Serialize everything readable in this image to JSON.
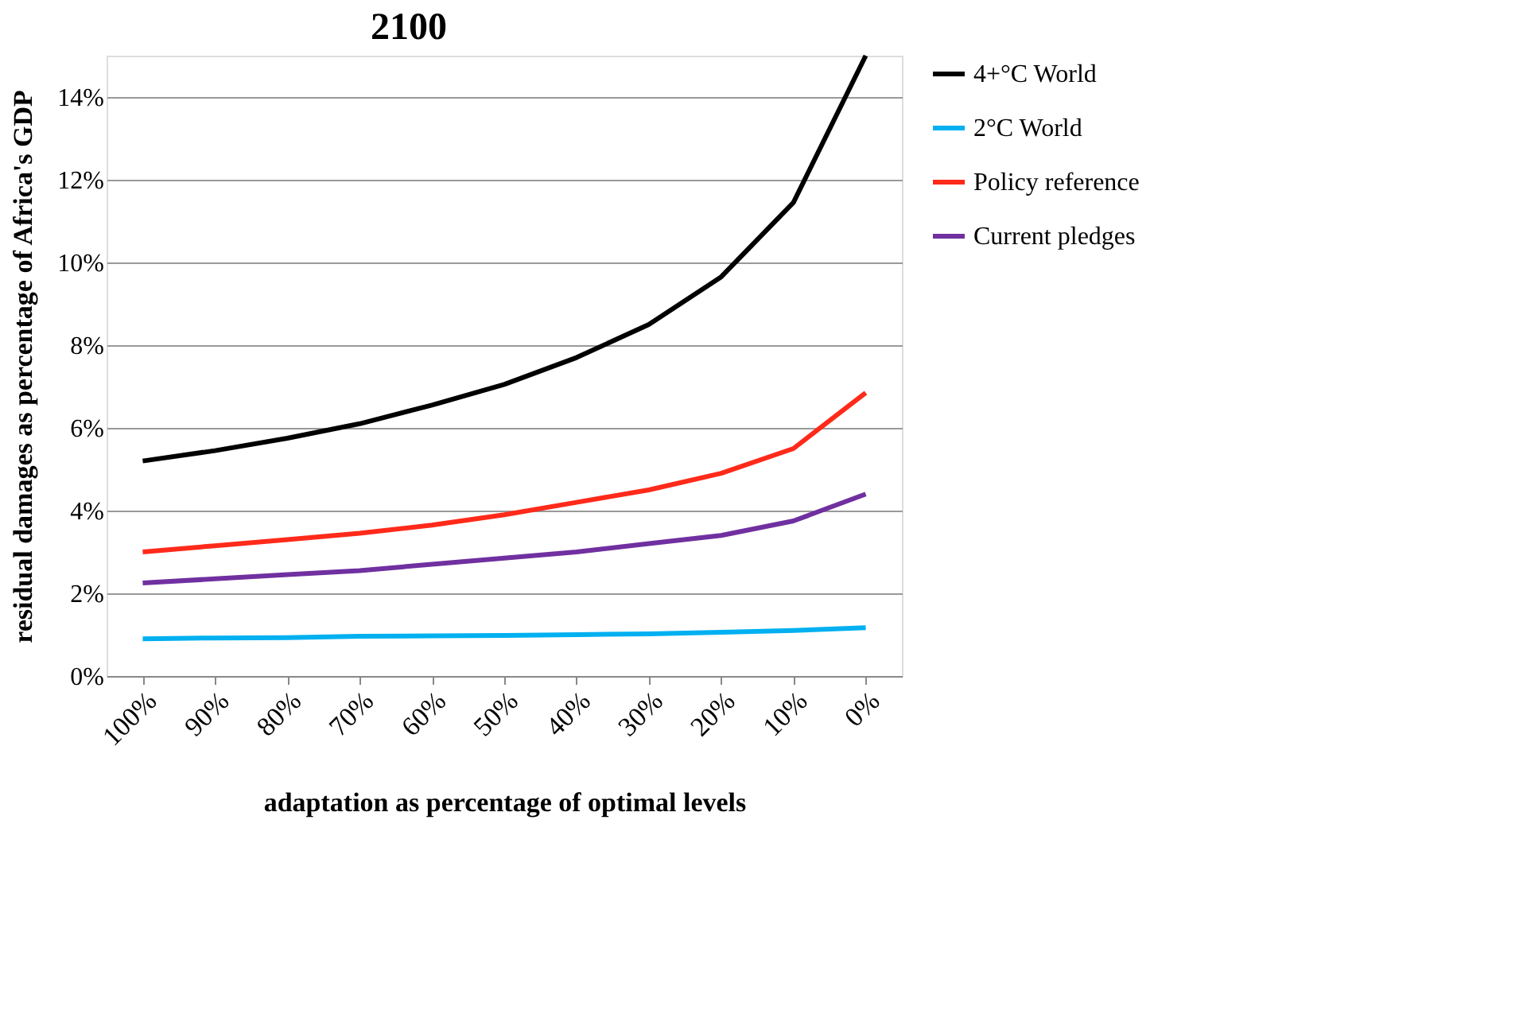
{
  "chart_data": {
    "type": "line",
    "title": "2100",
    "xlabel": "adaptation as percentage of optimal levels",
    "ylabel": "residual damages as percentage of Africa's GDP",
    "categories": [
      "100%",
      "90%",
      "80%",
      "70%",
      "60%",
      "50%",
      "40%",
      "30%",
      "20%",
      "10%",
      "0%"
    ],
    "series": [
      {
        "name": "4+°C World",
        "color": "#000000",
        "values": [
          5.2,
          5.45,
          5.75,
          6.1,
          6.55,
          7.05,
          7.7,
          8.5,
          9.65,
          11.45,
          15
        ]
      },
      {
        "name": "2°C World",
        "color": "#00b0f0",
        "values": [
          0.9,
          0.92,
          0.93,
          0.96,
          0.97,
          0.98,
          1.0,
          1.02,
          1.06,
          1.1,
          1.17
        ]
      },
      {
        "name": "Policy reference",
        "color": "#ff2a1a",
        "values": [
          3.0,
          3.15,
          3.3,
          3.45,
          3.65,
          3.9,
          4.2,
          4.5,
          4.9,
          5.5,
          6.85
        ]
      },
      {
        "name": "Current pledges",
        "color": "#7030a0",
        "values": [
          2.25,
          2.35,
          2.45,
          2.55,
          2.7,
          2.85,
          3.0,
          3.2,
          3.4,
          3.75,
          4.4
        ]
      }
    ],
    "ylim": [
      0,
      15
    ],
    "yticks": [
      {
        "value": 0,
        "label": "0%"
      },
      {
        "value": 2,
        "label": "2%"
      },
      {
        "value": 4,
        "label": "4%"
      },
      {
        "value": 6,
        "label": "6%"
      },
      {
        "value": 8,
        "label": "8%"
      },
      {
        "value": 10,
        "label": "10%"
      },
      {
        "value": 12,
        "label": "12%"
      },
      {
        "value": 14,
        "label": "14%"
      }
    ],
    "grid": "y",
    "legend": "right",
    "marker": "none",
    "line_style": "solid"
  }
}
